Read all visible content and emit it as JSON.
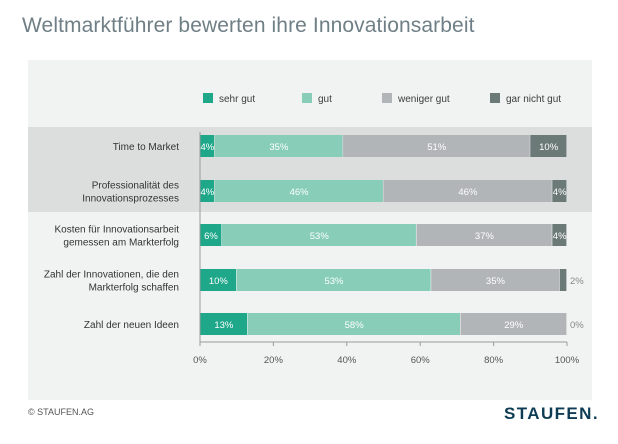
{
  "page_title": "Weltmarktführer bewerten ihre Innovationsarbeit",
  "footer": {
    "copyright": "© STAUFEN.AG",
    "logo": "STAUFEN."
  },
  "chart_data": {
    "type": "bar",
    "orientation": "horizontal-stacked-100",
    "title": "Weltmarktführer bewerten ihre Innovationsarbeit",
    "categories": [
      "Time to Market",
      "Professionalität des Innovationsprozesses",
      "Kosten für Innovationsarbeit gemessen am Markterfolg",
      "Zahl der Innovationen, die den Markterfolg schaffen",
      "Zahl der neuen Ideen"
    ],
    "category_lines": [
      [
        "Time to Market"
      ],
      [
        "Professionalität des",
        "Innovationsprozesses"
      ],
      [
        "Kosten für Innovationsarbeit",
        "gemessen am Markterfolg"
      ],
      [
        "Zahl der Innovationen, die den",
        "Markterfolg schaffen"
      ],
      [
        "Zahl der neuen Ideen"
      ]
    ],
    "series": [
      {
        "name": "sehr gut",
        "values": [
          4,
          4,
          6,
          10,
          13
        ],
        "color": "#1fa78a"
      },
      {
        "name": "gut",
        "values": [
          35,
          46,
          53,
          53,
          58
        ],
        "color": "#87cdb7"
      },
      {
        "name": "weniger gut",
        "values": [
          51,
          46,
          37,
          35,
          29
        ],
        "color": "#b1b5b7"
      },
      {
        "name": "gar nicht gut",
        "values": [
          10,
          4,
          4,
          2,
          0
        ],
        "color": "#6c7a77"
      }
    ],
    "value_labels": [
      [
        "4%",
        "35%",
        "51%",
        "10%"
      ],
      [
        "4%",
        "46%",
        "46%",
        "4%"
      ],
      [
        "6%",
        "53%",
        "37%",
        "4%"
      ],
      [
        "10%",
        "53%",
        "35%",
        "2%"
      ],
      [
        "13%",
        "58%",
        "29%",
        "0%"
      ]
    ],
    "x_ticks": [
      "0%",
      "20%",
      "40%",
      "60%",
      "80%",
      "100%"
    ],
    "xlim": [
      0,
      100
    ],
    "highlighted_rows": [
      0,
      1
    ],
    "legend_position": "top",
    "grid": false
  }
}
